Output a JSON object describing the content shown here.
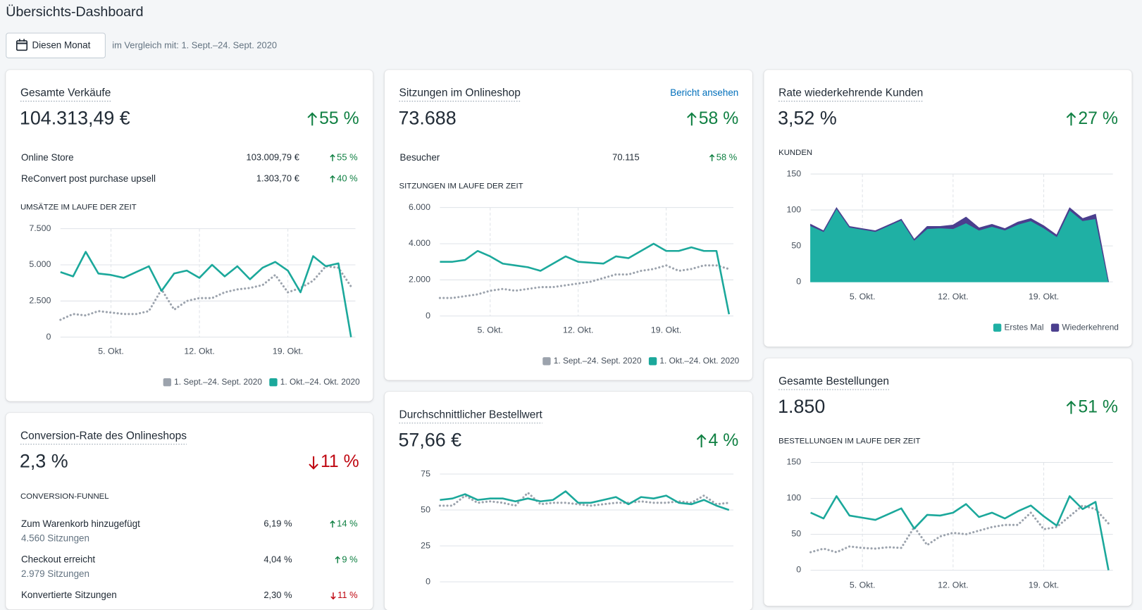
{
  "header": {
    "title": "Übersichts-Dashboard",
    "date_button": "Diesen Monat",
    "comparison": "im Vergleich mit: 1. Sept.–24. Sept. 2020"
  },
  "cards": [
    {
      "title": "Gesamte Verkäufe",
      "value": "104.313,49 €",
      "change": "55 %",
      "trend": "up",
      "rows": [
        {
          "label": "Online Store",
          "value": "103.009,79 €",
          "change": "55 %",
          "trend": "up"
        },
        {
          "label": "ReConvert post purchase upsell",
          "value": "1.303,70 €",
          "change": "40 %",
          "trend": "up"
        }
      ],
      "chart_data": {
        "type": "line",
        "title": "UMSÄTZE IM LAUFE DER ZEIT",
        "categories": [
          null,
          null,
          null,
          null,
          "5. Okt.",
          null,
          null,
          null,
          null,
          null,
          null,
          "12. Okt.",
          null,
          null,
          null,
          null,
          null,
          null,
          "19. Okt.",
          null,
          null,
          null,
          null,
          null
        ],
        "series": [
          {
            "name": "1. Sept.–24. Sept. 2020",
            "color": "#9ca3ad",
            "style": "dotted",
            "values": [
              1200,
              1600,
              1500,
              1800,
              1700,
              1600,
              1600,
              1800,
              3300,
              1900,
              2500,
              2700,
              2700,
              3100,
              3300,
              3400,
              3600,
              4300,
              3100,
              3400,
              3900,
              4900,
              4800,
              3500
            ]
          },
          {
            "name": "1. Okt.–24. Okt. 2020",
            "color": "#1ba89b",
            "style": "solid",
            "values": [
              4500,
              4200,
              5900,
              4400,
              4300,
              4100,
              4500,
              4900,
              3200,
              4400,
              4600,
              4100,
              5000,
              4200,
              4900,
              4000,
              4800,
              5200,
              4600,
              3100,
              5600,
              4900,
              5100,
              0
            ]
          }
        ],
        "ylim": [
          0,
          7500
        ],
        "yticks": [
          0,
          {
            "value": 2500,
            "label": "2.500"
          },
          {
            "value": 5000,
            "label": "5.000"
          },
          {
            "value": 7500,
            "label": "7.500"
          }
        ],
        "grid": true,
        "legend": "bottom-right"
      }
    },
    {
      "title": "Sitzungen im Onlineshop",
      "link": "Bericht ansehen",
      "value": "73.688",
      "change": "58 %",
      "trend": "up",
      "rows": [
        {
          "label": "Besucher",
          "value": "70.115",
          "change": "58 %",
          "trend": "up"
        }
      ],
      "chart_data": {
        "type": "line",
        "title": "SITZUNGEN IM LAUFE DER ZEIT",
        "categories": [
          null,
          null,
          null,
          null,
          "5. Okt.",
          null,
          null,
          null,
          null,
          null,
          null,
          "12. Okt.",
          null,
          null,
          null,
          null,
          null,
          null,
          "19. Okt.",
          null,
          null,
          null,
          null,
          null
        ],
        "series": [
          {
            "name": "1. Sept.–24. Sept. 2020",
            "color": "#9ca3ad",
            "style": "dotted",
            "values": [
              1000,
              1000,
              1100,
              1200,
              1400,
              1500,
              1400,
              1500,
              1600,
              1600,
              1700,
              1800,
              1900,
              2100,
              2300,
              2300,
              2500,
              2600,
              2800,
              2500,
              2600,
              2800,
              2800,
              2600
            ]
          },
          {
            "name": "1. Okt.–24. Okt. 2020",
            "color": "#1ba89b",
            "style": "solid",
            "values": [
              3000,
              3000,
              3100,
              3600,
              3300,
              2900,
              2800,
              2700,
              2500,
              2900,
              3300,
              3000,
              2950,
              2900,
              3300,
              3200,
              3600,
              4000,
              3600,
              3600,
              3800,
              3600,
              3600,
              100
            ]
          }
        ],
        "ylim": [
          0,
          6000
        ],
        "yticks": [
          0,
          {
            "value": 2000,
            "label": "2.000"
          },
          {
            "value": 4000,
            "label": "4.000"
          },
          {
            "value": 6000,
            "label": "6.000"
          }
        ],
        "grid": true,
        "legend": "bottom-right"
      }
    },
    {
      "title": "Rate wiederkehrende Kunden",
      "value": "3,52 %",
      "change": "27 %",
      "trend": "up",
      "chart_data": {
        "type": "area",
        "stacked": true,
        "ylabel": "KUNDEN",
        "categories": [
          null,
          null,
          null,
          null,
          "5. Okt.",
          null,
          null,
          null,
          null,
          null,
          null,
          "12. Okt.",
          null,
          null,
          null,
          null,
          null,
          null,
          "19. Okt.",
          null,
          null,
          null,
          null,
          null
        ],
        "series": [
          {
            "name": "Erstes Mal",
            "color": "#1fb0a4",
            "values": [
              78,
              70,
              102,
              76,
              73,
              70,
              78,
              86,
              58,
              74,
              75,
              74,
              82,
              72,
              77,
              72,
              80,
              85,
              75,
              63,
              100,
              85,
              88,
              0
            ]
          },
          {
            "name": "Wiederkehrend",
            "color": "#4b3f8e",
            "values": [
              2,
              1,
              1,
              1,
              1,
              1,
              1,
              1,
              1,
              3,
              2,
              5,
              8,
              3,
              3,
              2,
              3,
              3,
              3,
              2,
              3,
              3,
              6,
              0
            ]
          }
        ],
        "ylim": [
          0,
          150
        ],
        "yticks": [
          0,
          50,
          100,
          150
        ],
        "grid": true,
        "legend": "bottom-right"
      }
    },
    {
      "title": "Conversion-Rate des Onlineshops",
      "value": "2,3 %",
      "change": "11 %",
      "trend": "down",
      "section": "CONVERSION-FUNNEL",
      "rows": [
        {
          "label": "Zum Warenkorb hinzugefügt",
          "sublabel": "4.560 Sitzungen",
          "value": "6,19 %",
          "change": "14 %",
          "trend": "up"
        },
        {
          "label": "Checkout erreicht",
          "sublabel": "2.979 Sitzungen",
          "value": "4,04 %",
          "change": "9 %",
          "trend": "up"
        },
        {
          "label": "Konvertierte Sitzungen",
          "value": "2,30 %",
          "change": "11 %",
          "trend": "down"
        }
      ]
    },
    {
      "title": "Durchschnittlicher Bestellwert",
      "value": "57,66 €",
      "change": "4 %",
      "trend": "up",
      "chart_data": {
        "type": "line",
        "series": [
          {
            "color": "#9ca3ad",
            "style": "dotted",
            "values": [
              53,
              53,
              60,
              55,
              56,
              55,
              53,
              62,
              54,
              55,
              55,
              54,
              53,
              54,
              55,
              55,
              56,
              55,
              55,
              56,
              55,
              60,
              54,
              55
            ]
          },
          {
            "color": "#1ba89b",
            "style": "solid",
            "values": [
              57,
              58,
              61,
              57,
              58,
              58,
              56,
              58,
              56,
              57,
              63,
              55,
              55,
              57,
              59,
              54,
              59,
              58,
              60,
              55,
              54,
              57,
              53,
              50
            ]
          }
        ],
        "ylim": [
          0,
          75
        ],
        "yticks": [
          0,
          25,
          50,
          75
        ],
        "grid": true
      }
    },
    {
      "title": "Gesamte Bestellungen",
      "value": "1.850",
      "change": "51 %",
      "trend": "up",
      "chart_data": {
        "type": "line",
        "title": "BESTELLUNGEN IM LAUFE DER ZEIT",
        "categories": [
          null,
          null,
          null,
          null,
          "5. Okt.",
          null,
          null,
          null,
          null,
          null,
          null,
          "12. Okt.",
          null,
          null,
          null,
          null,
          null,
          null,
          "19. Okt.",
          null,
          null,
          null,
          null,
          null
        ],
        "series": [
          {
            "color": "#9ca3ad",
            "style": "dotted",
            "values": [
              25,
              30,
              25,
              33,
              31,
              30,
              32,
              31,
              60,
              35,
              47,
              52,
              50,
              55,
              60,
              63,
              63,
              80,
              57,
              60,
              75,
              90,
              85,
              65
            ]
          },
          {
            "color": "#1ba89b",
            "style": "solid",
            "values": [
              80,
              72,
              103,
              76,
              73,
              70,
              78,
              86,
              58,
              77,
              76,
              80,
              92,
              74,
              80,
              72,
              82,
              90,
              75,
              62,
              103,
              85,
              95,
              0
            ]
          }
        ],
        "ylim": [
          0,
          150
        ],
        "yticks": [
          0,
          50,
          100,
          150
        ],
        "grid": true
      }
    }
  ]
}
